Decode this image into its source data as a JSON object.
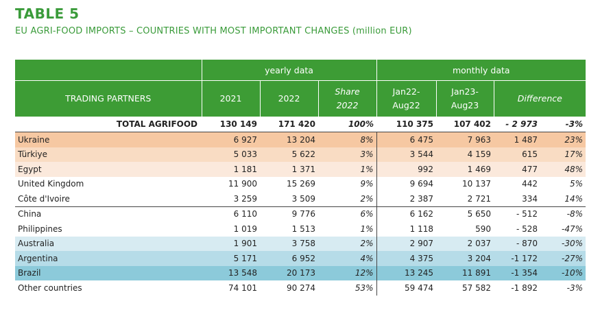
{
  "header": {
    "title": "TABLE 5",
    "subtitle": "EU AGRI-FOOD IMPORTS – COUNTRIES WITH MOST IMPORTANT CHANGES (million EUR)"
  },
  "table": {
    "group_yearly": "yearly data",
    "group_monthly": "monthly data",
    "col_partners": "TRADING PARTNERS",
    "col_2021": "2021",
    "col_2022": "2022",
    "col_share_1": "Share",
    "col_share_2": "2022",
    "col_m1_1": "Jan22-",
    "col_m1_2": "Aug22",
    "col_m2_1": "Jan23-",
    "col_m2_2": "Aug23",
    "col_diff": "Difference",
    "total": {
      "name": "TOTAL AGRIFOOD",
      "y2021": "130 149",
      "y2022": "171 420",
      "share": "100%",
      "m22": "110 375",
      "m23": "107 402",
      "diff": "- 2 973",
      "pct": "-3%"
    },
    "rows": [
      {
        "name": "Ukraine",
        "y2021": "6 927",
        "y2022": "13 204",
        "share": "8%",
        "m22": "6 475",
        "m23": "7 963",
        "diff": "1 487",
        "pct": "23%",
        "color": "#f6c8a2"
      },
      {
        "name": "Türkiye",
        "y2021": "5 033",
        "y2022": "5 622",
        "share": "3%",
        "m22": "3 544",
        "m23": "4 159",
        "diff": "615",
        "pct": "17%",
        "color": "#f9dcc3"
      },
      {
        "name": "Egypt",
        "y2021": "1 181",
        "y2022": "1 371",
        "share": "1%",
        "m22": "992",
        "m23": "1 469",
        "diff": "477",
        "pct": "48%",
        "color": "#fbe9dc"
      },
      {
        "name": "United Kingdom",
        "y2021": "11 900",
        "y2022": "15 269",
        "share": "9%",
        "m22": "9 694",
        "m23": "10 137",
        "diff": "442",
        "pct": "5%",
        "color": "#ffffff"
      },
      {
        "name": "Côte d'Ivoire",
        "y2021": "3 259",
        "y2022": "3 509",
        "share": "2%",
        "m22": "2 387",
        "m23": "2 721",
        "diff": "334",
        "pct": "14%",
        "color": "#ffffff"
      },
      {
        "name": "China",
        "y2021": "6 110",
        "y2022": "9 776",
        "share": "6%",
        "m22": "6 162",
        "m23": "5 650",
        "diff": "- 512",
        "pct": "-8%",
        "color": "#ffffff"
      },
      {
        "name": "Philippines",
        "y2021": "1 019",
        "y2022": "1 513",
        "share": "1%",
        "m22": "1 118",
        "m23": "590",
        "diff": "- 528",
        "pct": "-47%",
        "color": "#ffffff"
      },
      {
        "name": "Australia",
        "y2021": "1 901",
        "y2022": "3 758",
        "share": "2%",
        "m22": "2 907",
        "m23": "2 037",
        "diff": "- 870",
        "pct": "-30%",
        "color": "#d7ebf2"
      },
      {
        "name": "Argentina",
        "y2021": "5 171",
        "y2022": "6 952",
        "share": "4%",
        "m22": "4 375",
        "m23": "3 204",
        "diff": "-1 172",
        "pct": "-27%",
        "color": "#b6dce8"
      },
      {
        "name": "Brazil",
        "y2021": "13 548",
        "y2022": "20 173",
        "share": "12%",
        "m22": "13 245",
        "m23": "11 891",
        "diff": "-1 354",
        "pct": "-10%",
        "color": "#8ccada"
      },
      {
        "name": "Other countries",
        "y2021": "74 101",
        "y2022": "90 274",
        "share": "53%",
        "m22": "59 474",
        "m23": "57 582",
        "diff": "-1 892",
        "pct": "-3%",
        "color": "#ffffff"
      }
    ]
  }
}
